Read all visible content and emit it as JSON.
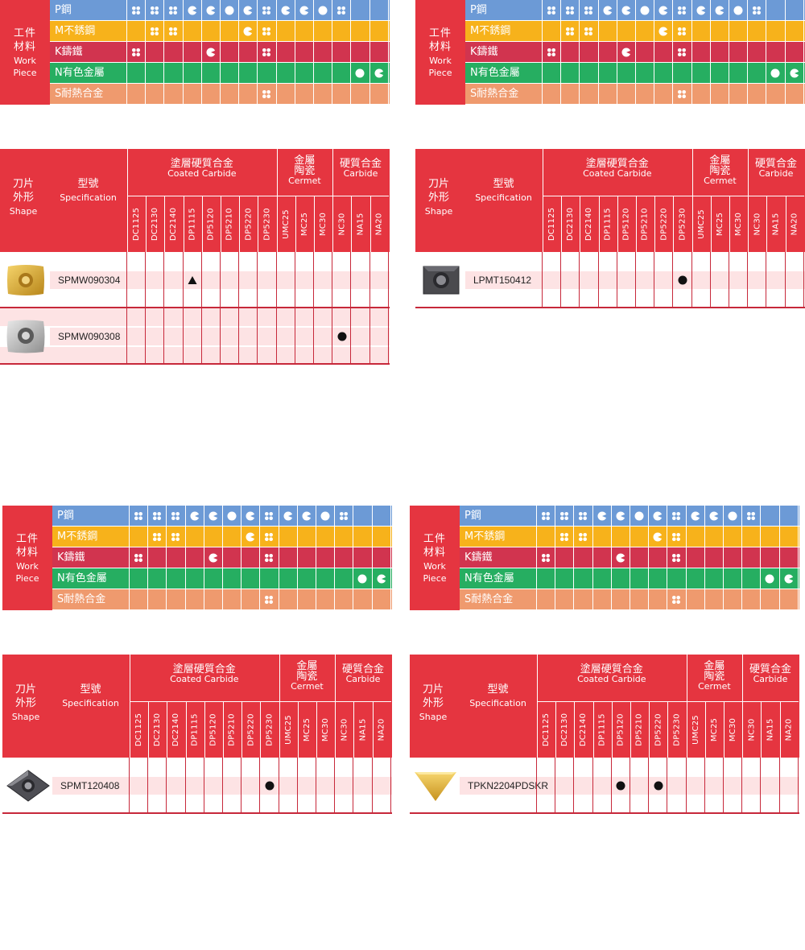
{
  "work_piece": {
    "title_cn_1": "工件",
    "title_cn_2": "材料",
    "title_en_1": "Work",
    "title_en_2": "Piece",
    "rows": [
      {
        "label": "P鋼",
        "color": "#6c9ad6"
      },
      {
        "label": "M不銹鋼",
        "color": "#f7b21b"
      },
      {
        "label": "K鑄鐵",
        "color": "#d1344f"
      },
      {
        "label": "N有色金屬",
        "color": "#26ae61"
      },
      {
        "label": "S耐熱合金",
        "color": "#ef9a6e"
      }
    ],
    "cells": [
      [
        "clover",
        "clover",
        "clover",
        "pac",
        "pac",
        "dot",
        "pac",
        "clover",
        "pac",
        "pac",
        "dot",
        "clover",
        "",
        ""
      ],
      [
        "",
        "clover",
        "clover",
        "",
        "",
        "",
        "pac",
        "clover",
        "",
        "",
        "",
        "",
        "",
        ""
      ],
      [
        "clover",
        "",
        "",
        "",
        "pac",
        "",
        "",
        "clover",
        "",
        "",
        "",
        "",
        "",
        ""
      ],
      [
        "",
        "",
        "",
        "",
        "",
        "",
        "",
        "",
        "",
        "",
        "",
        "",
        "dot",
        "pac"
      ],
      [
        "",
        "",
        "",
        "",
        "",
        "",
        "",
        "clover",
        "",
        "",
        "",
        "",
        "",
        ""
      ]
    ]
  },
  "spec_header": {
    "shape_cn_1": "刀片",
    "shape_cn_2": "外形",
    "shape_en": "Shape",
    "model_cn": "型號",
    "model_en": "Specification",
    "coated_cn": "塗層硬質合金",
    "coated_en": "Coated Carbide",
    "cermet_cn_1": "金屬",
    "cermet_cn_2": "陶瓷",
    "cermet_en": "Cermet",
    "carbide_cn": "硬質合金",
    "carbide_en": "Carbide",
    "grades": [
      "DC1125",
      "DC2130",
      "DC2140",
      "DP1115",
      "DP5120",
      "DP5210",
      "DP5220",
      "DP5230",
      "UMC25",
      "MC25",
      "MC30",
      "NC30",
      "NA15",
      "NA20"
    ]
  },
  "panels": [
    {
      "name": "top-left",
      "rows": [
        {
          "model": "SPMW090304",
          "insert": "gold-square",
          "marks": [
            {
              "grade": 3,
              "type": "triangle"
            }
          ]
        },
        {
          "model": "SPMW090308",
          "insert": "silver-square",
          "marks": [
            {
              "grade": 11,
              "type": "dot"
            }
          ]
        }
      ]
    },
    {
      "name": "top-right",
      "rows": [
        {
          "model": "LPMT150412",
          "insert": "dark-square",
          "marks": [
            {
              "grade": 7,
              "type": "dot"
            }
          ]
        }
      ]
    },
    {
      "name": "bottom-left",
      "rows": [
        {
          "model": "SPMT120408",
          "insert": "dark-diamond",
          "marks": [
            {
              "grade": 7,
              "type": "dot"
            }
          ]
        }
      ]
    },
    {
      "name": "bottom-right",
      "rows": [
        {
          "model": "TPKN2204PDSKR",
          "insert": "gold-triangle",
          "marks": [
            {
              "grade": 4,
              "type": "dot"
            },
            {
              "grade": 6,
              "type": "dot"
            }
          ]
        }
      ]
    }
  ]
}
